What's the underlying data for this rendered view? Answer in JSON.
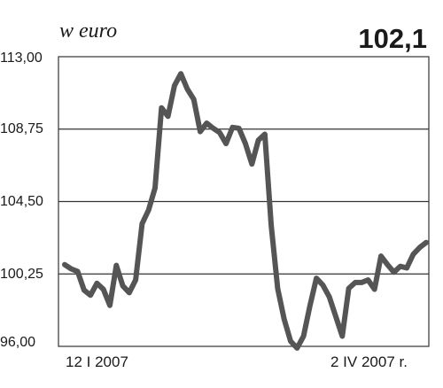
{
  "chart_data": {
    "type": "line",
    "unit_label": "w euro",
    "last_value_label": "102,1",
    "yticks": [
      "113,00",
      "108,75",
      "104,50",
      "100,25",
      "96,00"
    ],
    "ytick_values": [
      113.0,
      108.75,
      104.5,
      100.25,
      96.0
    ],
    "ylim": [
      96.0,
      113.0
    ],
    "xlabels": [
      "12 I 2007",
      "2 IV 2007 r."
    ],
    "grid": "horizontal",
    "color": "#555555",
    "series": [
      {
        "values": [
          100.8,
          100.55,
          100.4,
          99.3,
          99.0,
          99.7,
          99.35,
          98.4,
          100.75,
          99.55,
          99.15,
          99.9,
          103.2,
          104.0,
          105.3,
          110.0,
          109.5,
          111.3,
          112.0,
          111.1,
          110.5,
          108.6,
          109.1,
          108.8,
          108.55,
          107.9,
          108.85,
          108.8,
          107.9,
          106.7,
          108.1,
          108.45,
          103.1,
          99.4,
          97.6,
          96.3,
          95.9,
          96.6,
          98.4,
          100.0,
          99.6,
          98.9,
          97.75,
          96.6,
          99.4,
          99.75,
          99.75,
          99.9,
          99.35,
          101.3,
          100.8,
          100.35,
          100.7,
          100.6,
          101.4,
          101.8,
          102.1
        ]
      }
    ]
  }
}
